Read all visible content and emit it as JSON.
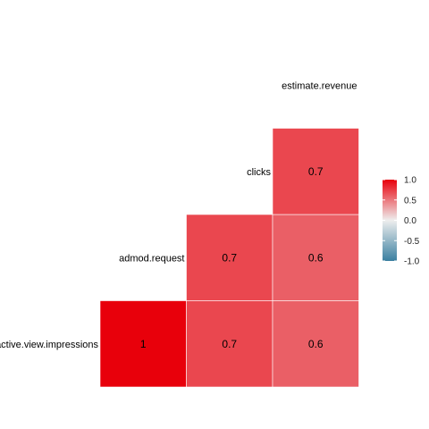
{
  "chart_data": {
    "type": "heatmap",
    "variables": [
      "active.view.impressions",
      "admod.request",
      "clicks",
      "estimate.revenue"
    ],
    "cells": [
      {
        "row": "active.view.impressions",
        "col": "active.view.impressions",
        "value": 1,
        "label": "1"
      },
      {
        "row": "active.view.impressions",
        "col": "admod.request",
        "value": 0.7,
        "label": "0.7"
      },
      {
        "row": "active.view.impressions",
        "col": "clicks",
        "value": 0.6,
        "label": "0.6"
      },
      {
        "row": "admod.request",
        "col": "admod.request",
        "value": 0.7,
        "label": "0.7"
      },
      {
        "row": "admod.request",
        "col": "clicks",
        "value": 0.6,
        "label": "0.6"
      },
      {
        "row": "clicks",
        "col": "clicks",
        "value": 0.7,
        "label": "0.7"
      }
    ],
    "legend": {
      "placement": "right",
      "range": [
        -1,
        1
      ],
      "ticks": [
        "1.0",
        "0.5",
        "0.0",
        "-0.5",
        "-1.0"
      ],
      "tick_values": [
        1,
        0.5,
        0,
        -0.5,
        -1
      ],
      "low_color": "#3A7FA0",
      "mid_color": "#EEEEEE",
      "high_color": "#E8000B"
    },
    "grid": false,
    "title": "",
    "xlabel": "",
    "ylabel": ""
  }
}
